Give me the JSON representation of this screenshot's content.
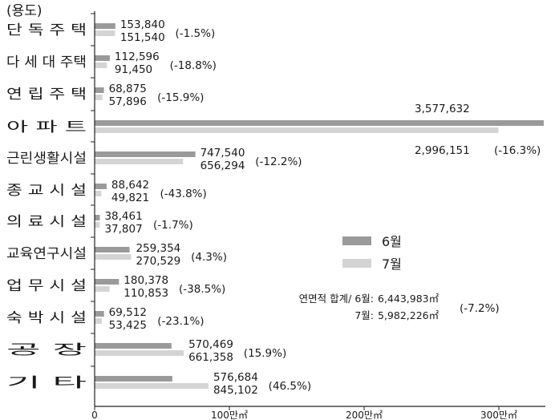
{
  "chart_data": {
    "type": "bar",
    "orientation": "horizontal",
    "unit_label": "(용도)",
    "categories": [
      "단 독 주 택",
      "다 세 대 주택",
      "연 립 주 택",
      "아 파 트",
      "근린생활시설",
      "종 교 시 설",
      "의 료 시 설",
      "교육연구시설",
      "업 무 시 설",
      "숙 박 시 설",
      "공 장",
      "기 타"
    ],
    "series": [
      {
        "name": "6월",
        "values": [
          153840,
          112596,
          68875,
          3577632,
          747540,
          88642,
          38461,
          259354,
          180378,
          69512,
          570469,
          576684
        ],
        "labels": [
          "153,840",
          "112,596",
          "68,875",
          "3,577,632",
          "747,540",
          "88,642",
          "38,461",
          "259,354",
          "180,378",
          "69,512",
          "570,469",
          "576,684"
        ]
      },
      {
        "name": "7월",
        "values": [
          151540,
          91450,
          57896,
          2996151,
          656294,
          49821,
          37807,
          270529,
          110853,
          53425,
          661358,
          845102
        ],
        "labels": [
          "151,540",
          "91,450",
          "57,896",
          "2,996,151",
          "656,294",
          "49,821",
          "37,807",
          "270,529",
          "110,853",
          "53,425",
          "661,358",
          "845,102"
        ]
      }
    ],
    "changes": [
      "(-1.5%)",
      "(-18.8%)",
      "(-15.9%)",
      "(-16.3%)",
      "(-12.2%)",
      "(-43.8%)",
      "(-1.7%)",
      "(4.3%)",
      "(-38.5%)",
      "(-23.1%)",
      "(15.9%)",
      "(46.5%)"
    ],
    "xlim": [
      0,
      3500000
    ],
    "xticks": [
      0,
      1000000,
      2000000,
      3000000
    ],
    "xtick_labels": [
      "0",
      "100만㎡",
      "200만㎡",
      "300만㎡"
    ],
    "legend_position": "right-middle",
    "totals": {
      "line1_prefix": "연면적 합계/ 6월:",
      "line1_value": "6,443,983㎡",
      "line2_prefix": "7월:",
      "line2_value": "5,982,226㎡",
      "change": "(-7.2%)"
    },
    "colors": {
      "jun": "#9a9a9a",
      "jul": "#d4d4d4",
      "axis": "#222222",
      "text": "#1a1a1a"
    }
  }
}
